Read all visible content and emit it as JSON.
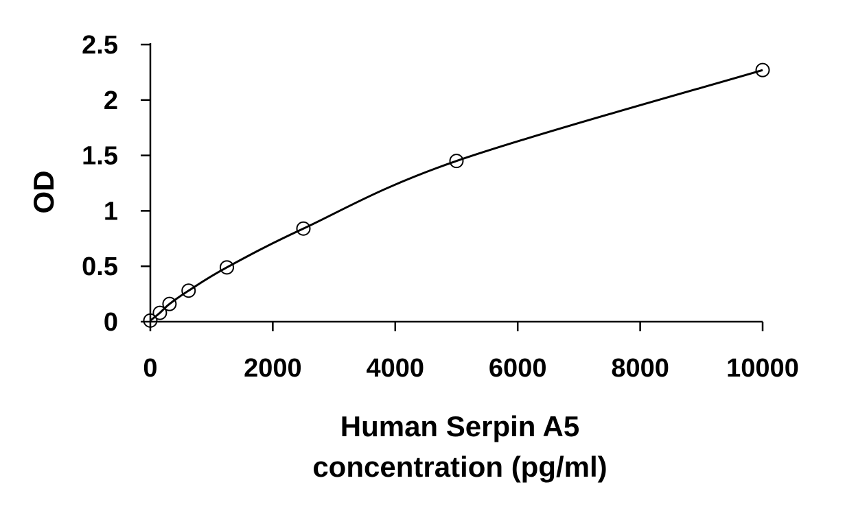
{
  "chart_data": {
    "type": "scatter",
    "title": "",
    "xlabel_lines": [
      "Human Serpin A5",
      "concentration (pg/ml)"
    ],
    "ylabel": "OD",
    "xlim": [
      0,
      10000
    ],
    "ylim": [
      0,
      2.5
    ],
    "x_ticks": [
      0,
      2000,
      4000,
      6000,
      8000,
      10000
    ],
    "x_tick_labels": [
      "0",
      "2000",
      "4000",
      "6000",
      "8000",
      "10000"
    ],
    "y_ticks": [
      0,
      0.5,
      1,
      1.5,
      2,
      2.5
    ],
    "y_tick_labels": [
      "0",
      "0.5",
      "1",
      "1.5",
      "2",
      "2.5"
    ],
    "grid": false,
    "legend": "none",
    "series": [
      {
        "points": [
          {
            "x": 0,
            "y": 0.01
          },
          {
            "x": 156,
            "y": 0.08
          },
          {
            "x": 313,
            "y": 0.16
          },
          {
            "x": 625,
            "y": 0.28
          },
          {
            "x": 1250,
            "y": 0.49
          },
          {
            "x": 2500,
            "y": 0.84
          },
          {
            "x": 5000,
            "y": 1.45
          },
          {
            "x": 10000,
            "y": 2.27
          }
        ],
        "marker": "open-circle",
        "fit_line": true,
        "color": "#000000"
      }
    ]
  }
}
